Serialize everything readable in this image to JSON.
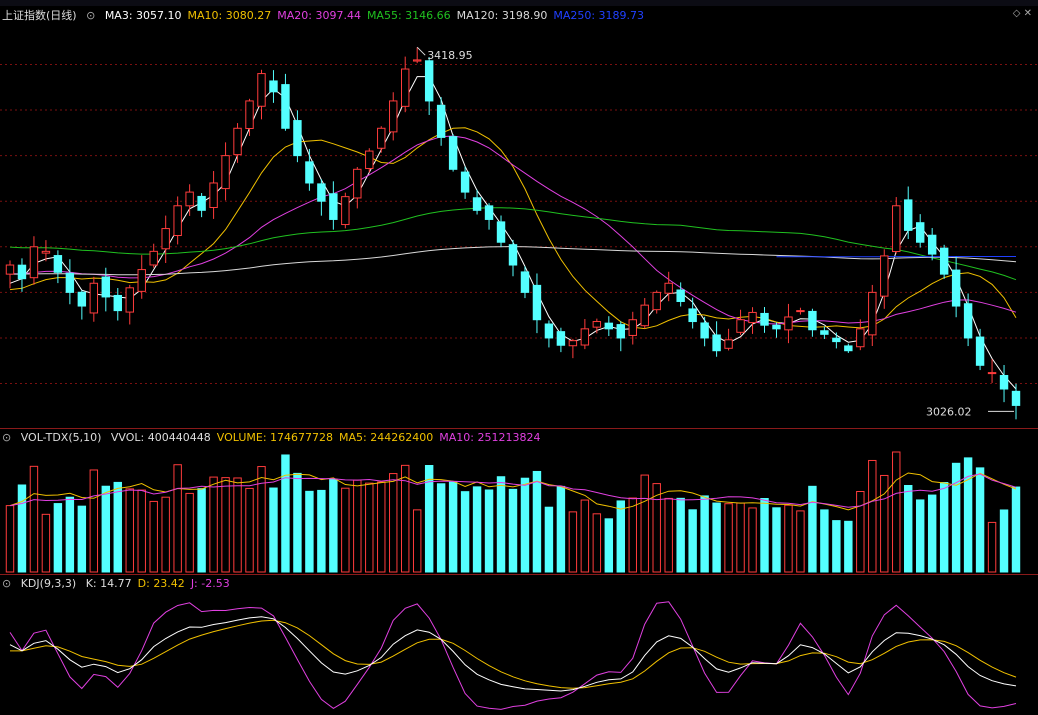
{
  "main_title": "上证指数(日线)",
  "ma_labels": [
    {
      "name": "MA3",
      "value": "3057.10",
      "color": "#ffffff"
    },
    {
      "name": "MA10",
      "value": "3080.27",
      "color": "#f0c000"
    },
    {
      "name": "MA20",
      "value": "3097.44",
      "color": "#e040e0"
    },
    {
      "name": "MA55",
      "value": "3146.66",
      "color": "#20c020"
    },
    {
      "name": "MA120",
      "value": "3198.90",
      "color": "#d8d8d8"
    },
    {
      "name": "MA250",
      "value": "3189.73",
      "color": "#2040ff"
    }
  ],
  "price_high_label": "3418.95",
  "price_low_label": "3026.02",
  "vol_title": "VOL-TDX(5,10)",
  "vol_labels": [
    {
      "name": "VVOL",
      "value": "400440448",
      "color": "#dddddd"
    },
    {
      "name": "VOLUME",
      "value": "174677728",
      "color": "#f0c000"
    },
    {
      "name": "MA5",
      "value": "244262400",
      "color": "#f0c000"
    },
    {
      "name": "MA10",
      "value": "251213824",
      "color": "#e040e0"
    }
  ],
  "kdj_title": "KDJ(9,3,3)",
  "kdj_labels": [
    {
      "name": "K",
      "value": "14.77",
      "color": "#dddddd"
    },
    {
      "name": "D",
      "value": "23.42",
      "color": "#f0c000"
    },
    {
      "name": "J",
      "value": "-2.53",
      "color": "#e040e0"
    }
  ],
  "colors": {
    "up": "#ff3c3c",
    "down": "#54ffff",
    "grid": "#7a1010",
    "bg": "#000000"
  },
  "chart_data": [
    {
      "type": "candlestick",
      "title": "上证指数(日线)",
      "ylim": [
        3010,
        3440
      ],
      "close": [
        3180,
        3165,
        3200,
        3195,
        3172,
        3150,
        3135,
        3160,
        3145,
        3130,
        3155,
        3175,
        3195,
        3220,
        3245,
        3260,
        3240,
        3270,
        3300,
        3330,
        3360,
        3390,
        3370,
        3330,
        3300,
        3270,
        3250,
        3230,
        3255,
        3285,
        3305,
        3330,
        3360,
        3395,
        3405,
        3360,
        3320,
        3285,
        3260,
        3240,
        3230,
        3205,
        3180,
        3150,
        3120,
        3100,
        3092,
        3097,
        3110,
        3118,
        3110,
        3100,
        3120,
        3136,
        3150,
        3160,
        3140,
        3118,
        3100,
        3086,
        3098,
        3120,
        3128,
        3114,
        3110,
        3123,
        3130,
        3109,
        3104,
        3096,
        3086,
        3110,
        3150,
        3190,
        3245,
        3218,
        3205,
        3192,
        3170,
        3135,
        3100,
        3070,
        3062,
        3044,
        3026
      ],
      "note_high": 3418.95,
      "note_low": 3026.02
    },
    {
      "type": "bar",
      "title": "VOL-TDX(5,10)",
      "series_values_relative": "volume"
    },
    {
      "type": "line",
      "title": "KDJ(9,3,3)",
      "ylim": [
        -20,
        120
      ]
    }
  ]
}
